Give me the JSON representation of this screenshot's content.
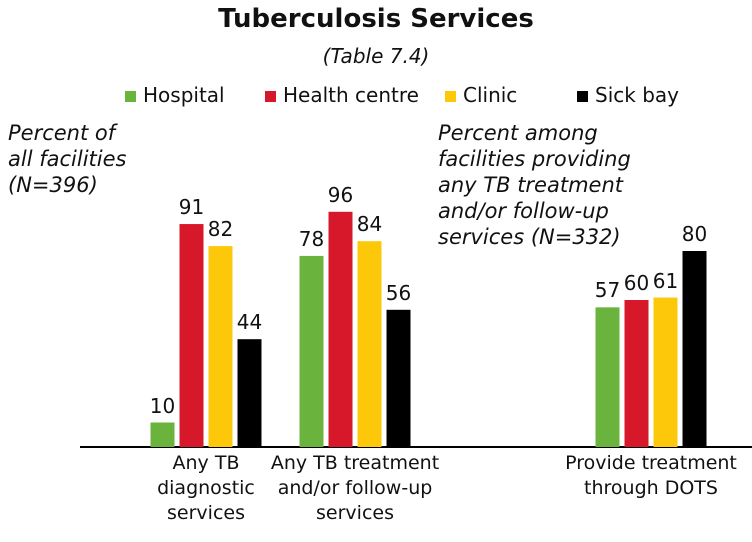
{
  "chart_data": {
    "type": "bar",
    "title": "Tuberculosis Services",
    "subtitle": "(Table 7.4)",
    "annotations": [
      "Percent of all facilities (N=396)",
      "Percent among facilities providing any TB treatment and/or follow-up services (N=332)"
    ],
    "categories": [
      "Any TB diagnostic services",
      "Any TB treatment and/or follow-up services",
      "Provide treatment through DOTS"
    ],
    "series": [
      {
        "name": "Hospital",
        "color": "#6ab43e",
        "values": [
          10,
          78,
          57
        ]
      },
      {
        "name": "Health centre",
        "color": "#d7182a",
        "values": [
          91,
          96,
          60
        ]
      },
      {
        "name": "Clinic",
        "color": "#fdc80a",
        "values": [
          82,
          84,
          61
        ]
      },
      {
        "name": "Sick bay",
        "color": "#000000",
        "values": [
          44,
          56,
          80
        ]
      }
    ],
    "ylim": [
      0,
      100
    ]
  }
}
